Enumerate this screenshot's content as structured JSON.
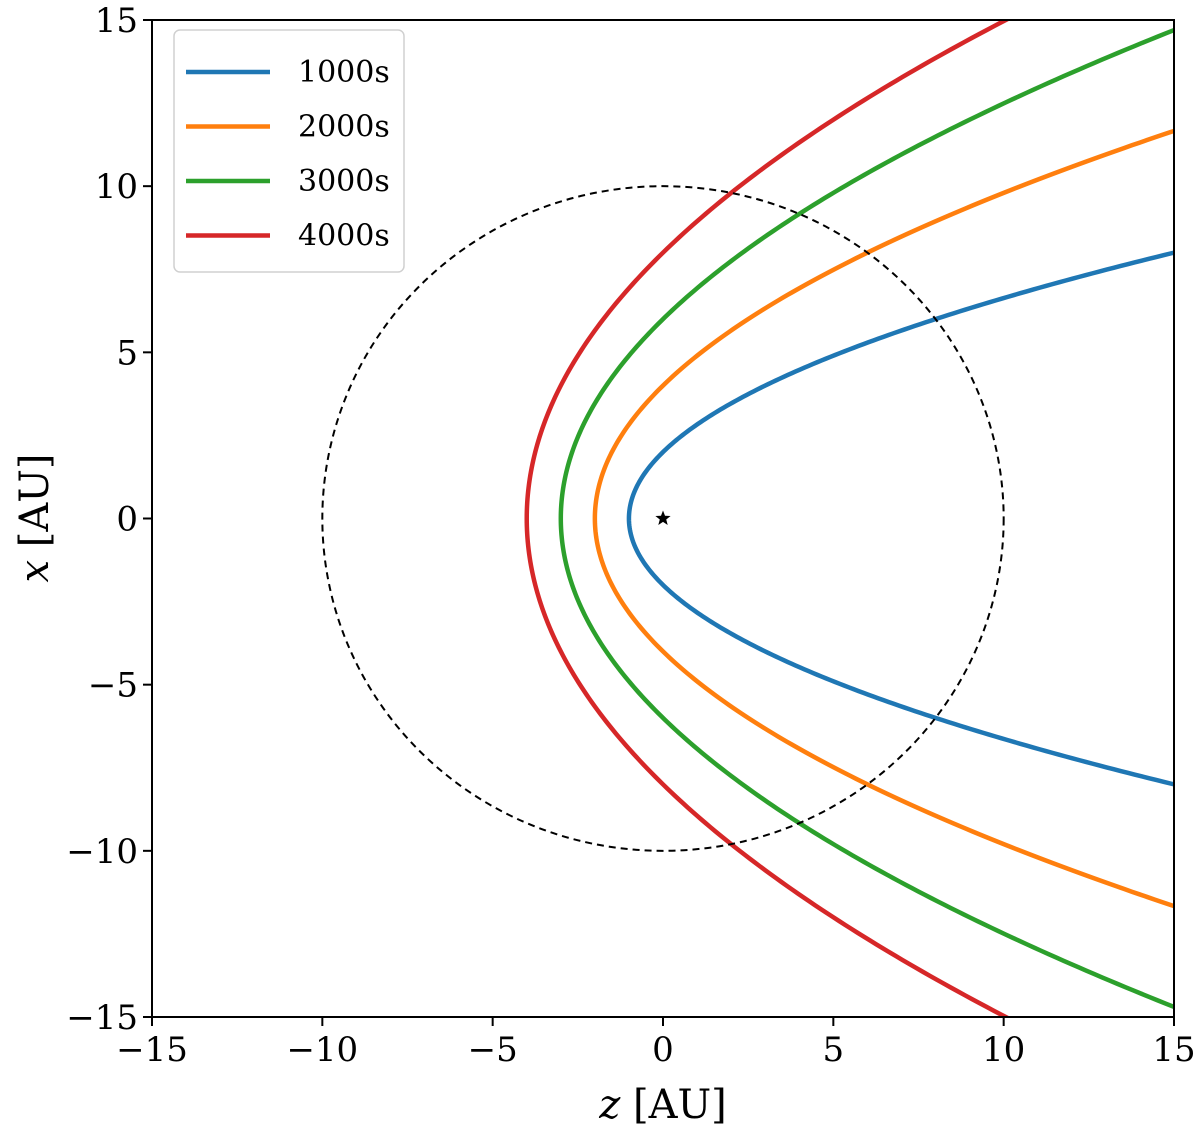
{
  "chart_data": {
    "type": "line",
    "title": "",
    "xlabel": "z [AU]",
    "ylabel": "x [AU]",
    "xlabel_var": "z",
    "xlabel_unit": " [AU]",
    "ylabel_var": "x",
    "ylabel_unit": " [AU]",
    "xlim": [
      -15,
      15
    ],
    "ylim": [
      -15,
      15
    ],
    "xticks": [
      -15,
      -10,
      -5,
      0,
      5,
      10,
      15
    ],
    "yticks": [
      -15,
      -10,
      -5,
      0,
      5,
      10,
      15
    ],
    "xtick_labels": [
      "−15",
      "−10",
      "−5",
      "0",
      "5",
      "10",
      "15"
    ],
    "ytick_labels": [
      "−15",
      "−10",
      "−5",
      "0",
      "5",
      "10",
      "15"
    ],
    "grid": false,
    "legend_position": "top-left",
    "series": [
      {
        "name": "1000s",
        "color": "#1f77b4",
        "vertex_z": -1,
        "x": [
          -8,
          -6,
          -4,
          -2,
          0,
          2,
          4,
          6,
          8
        ],
        "z": [
          15,
          8,
          3,
          0,
          -1,
          0,
          3,
          8,
          15
        ]
      },
      {
        "name": "2000s",
        "color": "#ff7f0e",
        "vertex_z": -2,
        "x": [
          -11.66,
          -8,
          -4,
          0,
          4,
          8,
          11.66
        ],
        "z": [
          15,
          6,
          0,
          -2,
          0,
          6,
          15
        ]
      },
      {
        "name": "3000s",
        "color": "#2ca02c",
        "vertex_z": -3,
        "x": [
          -14.7,
          -9.17,
          -6,
          0,
          6,
          9.17,
          14.7
        ],
        "z": [
          15,
          4,
          0,
          -3,
          0,
          4,
          15
        ]
      },
      {
        "name": "4000s",
        "color": "#d62728",
        "vertex_z": -4,
        "x": [
          -15,
          -9.8,
          -8,
          0,
          8,
          9.8,
          15
        ],
        "z": [
          10.06,
          2,
          0,
          -4,
          0,
          2,
          10.06
        ]
      }
    ],
    "reference_circle": {
      "radius": 10,
      "center": [
        0,
        0
      ],
      "style": "dashed",
      "color": "#000000"
    },
    "star_marker": {
      "z": 0,
      "x": 0,
      "symbol": "★"
    }
  }
}
